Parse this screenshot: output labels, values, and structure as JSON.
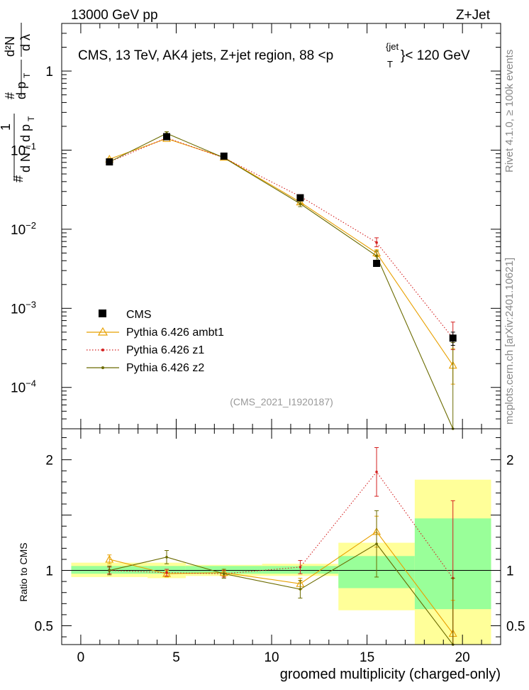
{
  "header": {
    "left": "13000 GeV pp",
    "right": "Z+Jet"
  },
  "side": {
    "rivet": "Rivet 4.1.0, ≥ 100k events",
    "mcplots": "mcplots.cern.ch [arXiv:2401.10621]"
  },
  "colors": {
    "cms": "#000000",
    "ambt1": "#e8a000",
    "z1": "#d42020",
    "z2": "#6b6b00",
    "band_inner": "#99ff99",
    "band_outer": "#ffff99"
  },
  "chart_data": [
    {
      "type": "line",
      "scale": "log",
      "title_parts": {
        "main": "CMS, 13 TeV, AK4 jets, Z+jet region, 88 <p",
        "sup": "{jet",
        "sub": "T",
        "end": "}< 120 GeV"
      },
      "ylabel": "1/N dN/dp_T d²N/dp_T dλ",
      "ylabel_parts": {
        "one": "1",
        "hash1": "#",
        "dN": "d N / d p",
        "T1": "T",
        "hash2": "#",
        "dpT": "d p",
        "T2": "T",
        "d2N": "d²N",
        "dlambda": "d λ"
      },
      "ylim": [
        3e-05,
        4
      ],
      "xlim": [
        -1,
        22
      ],
      "yticks": [
        {
          "v": 1,
          "label": "1"
        },
        {
          "v": 0.1,
          "label": "10",
          "exp": "−1"
        },
        {
          "v": 0.01,
          "label": "10",
          "exp": "−2"
        },
        {
          "v": 0.001,
          "label": "10",
          "exp": "−3"
        },
        {
          "v": 0.0001,
          "label": "10",
          "exp": "−4"
        }
      ],
      "watermark": "(CMS_2021_I1920187)",
      "legend": [
        {
          "key": "cms",
          "label": "CMS"
        },
        {
          "key": "ambt1",
          "label": "Pythia 6.426 ambt1"
        },
        {
          "key": "z1",
          "label": "Pythia 6.426 z1"
        },
        {
          "key": "z2",
          "label": "Pythia 6.426 z2"
        }
      ],
      "x": [
        1.5,
        4.5,
        7.5,
        11.5,
        15.5,
        19.5
      ],
      "x_low": [
        -1,
        3,
        6,
        9,
        13,
        18
      ],
      "x_high": [
        3,
        6,
        9,
        13,
        18,
        22
      ],
      "series": [
        {
          "name": "CMS",
          "key": "cms",
          "values": [
            0.071,
            0.148,
            0.084,
            0.025,
            0.0037,
            0.00042
          ],
          "err_lo": [
            0.003,
            0.006,
            0.003,
            0.0015,
            0.0003,
            8e-05
          ],
          "err_hi": [
            0.003,
            0.006,
            0.003,
            0.0015,
            0.0003,
            8e-05
          ]
        },
        {
          "name": "Pythia 6.426 ambt1",
          "key": "ambt1",
          "values": [
            0.077,
            0.14,
            0.081,
            0.022,
            0.005,
            0.00019
          ],
          "err_lo": [
            0.002,
            0.004,
            0.002,
            0.0012,
            0.0005,
            8e-05
          ],
          "err_hi": [
            0.002,
            0.004,
            0.002,
            0.0012,
            0.0005,
            0.00012
          ]
        },
        {
          "name": "Pythia 6.426 z1",
          "key": "z1",
          "values": [
            0.071,
            0.143,
            0.08,
            0.026,
            0.0068,
            0.00042
          ],
          "err_lo": [
            0.002,
            0.004,
            0.002,
            0.0013,
            0.0008,
            0.00012
          ],
          "err_hi": [
            0.002,
            0.004,
            0.002,
            0.0013,
            0.001,
            0.00025
          ]
        },
        {
          "name": "Pythia 6.426 z2",
          "key": "z2",
          "values": [
            0.071,
            0.163,
            0.08,
            0.021,
            0.0046,
            2e-05
          ],
          "err_lo": [
            0.003,
            0.008,
            0.003,
            0.0017,
            0.0007,
            1e-05
          ],
          "err_hi": [
            0.003,
            0.008,
            0.003,
            0.0017,
            0.0007,
            0.00035
          ]
        }
      ]
    },
    {
      "type": "line",
      "scale": "linear",
      "ylabel": "Ratio to CMS",
      "xlabel": "groomed multiplicity (charged-only)",
      "ylim": [
        0.33,
        2.28
      ],
      "xlim": [
        -1,
        22
      ],
      "xticks": [
        {
          "v": 0,
          "label": "0"
        },
        {
          "v": 5,
          "label": "5"
        },
        {
          "v": 10,
          "label": "10"
        },
        {
          "v": 15,
          "label": "15"
        },
        {
          "v": 20,
          "label": "20"
        }
      ],
      "yticks": [
        {
          "v": 0.5,
          "label": "0.5"
        },
        {
          "v": 1,
          "label": "1"
        },
        {
          "v": 2,
          "label": "2"
        }
      ],
      "bands": [
        {
          "x0": -0.5,
          "x1": 3.5,
          "inner": [
            0.97,
            1.04
          ],
          "outer": [
            0.94,
            1.07
          ]
        },
        {
          "x0": 3.5,
          "x1": 5.5,
          "inner": [
            0.97,
            1.04
          ],
          "outer": [
            0.93,
            1.07
          ]
        },
        {
          "x0": 5.5,
          "x1": 9.5,
          "inner": [
            0.97,
            1.04
          ],
          "outer": [
            0.95,
            1.05
          ]
        },
        {
          "x0": 9.5,
          "x1": 13.5,
          "inner": [
            0.97,
            1.04
          ],
          "outer": [
            0.95,
            1.06
          ]
        },
        {
          "x0": 13.5,
          "x1": 17.5,
          "inner": [
            0.84,
            1.13
          ],
          "outer": [
            0.64,
            1.25
          ]
        },
        {
          "x0": 17.5,
          "x1": 21.5,
          "inner": [
            0.65,
            1.47
          ],
          "outer": [
            0.33,
            1.82
          ]
        }
      ],
      "x": [
        1.5,
        4.5,
        7.5,
        11.5,
        15.5,
        19.5
      ],
      "series": [
        {
          "name": "Pythia 6.426 ambt1",
          "key": "ambt1",
          "values": [
            1.1,
            0.97,
            0.98,
            0.88,
            1.35,
            0.43
          ],
          "err": [
            0.04,
            0.03,
            0.03,
            0.05,
            0.14,
            0.3
          ]
        },
        {
          "name": "Pythia 6.426 z1",
          "key": "z1",
          "values": [
            1.0,
            0.98,
            0.97,
            1.03,
            1.89,
            0.93
          ],
          "err": [
            0.03,
            0.03,
            0.03,
            0.06,
            0.22,
            0.7
          ]
        },
        {
          "name": "Pythia 6.426 z2",
          "key": "z2",
          "values": [
            1.0,
            1.12,
            0.97,
            0.83,
            1.24,
            0.03
          ],
          "err": [
            0.04,
            0.06,
            0.04,
            0.08,
            0.3,
            0.9
          ]
        }
      ]
    }
  ]
}
